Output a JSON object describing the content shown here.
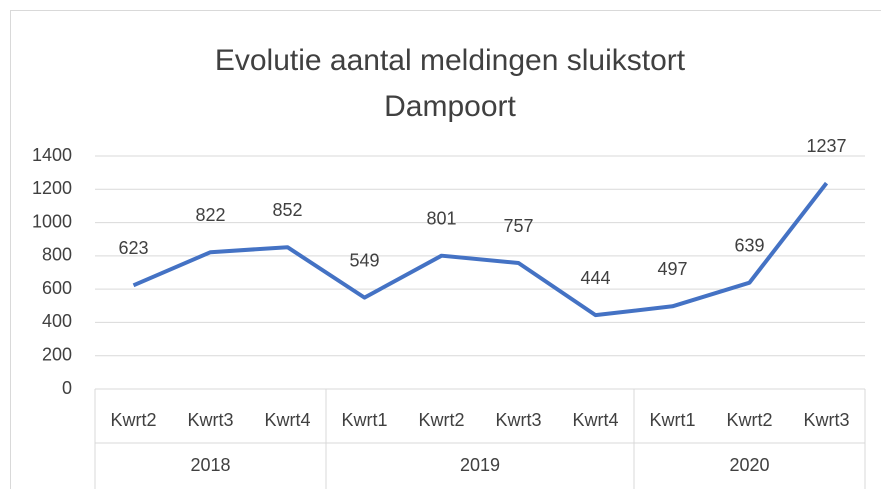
{
  "chart_data": {
    "type": "line",
    "title": "Evolutie aantal meldingen sluikstort Dampoort",
    "groups": [
      {
        "name": "2018",
        "categories": [
          "Kwrt2",
          "Kwrt3",
          "Kwrt4"
        ]
      },
      {
        "name": "2019",
        "categories": [
          "Kwrt1",
          "Kwrt2",
          "Kwrt3",
          "Kwrt4"
        ]
      },
      {
        "name": "2020",
        "categories": [
          "Kwrt1",
          "Kwrt2",
          "Kwrt3"
        ]
      }
    ],
    "values": [
      623,
      822,
      852,
      549,
      801,
      757,
      444,
      497,
      639,
      1237
    ],
    "color": "#4472c4",
    "ylim": [
      0,
      1400
    ],
    "yticks": [
      0,
      200,
      400,
      600,
      800,
      1000,
      1200,
      1400
    ],
    "grid": true
  }
}
